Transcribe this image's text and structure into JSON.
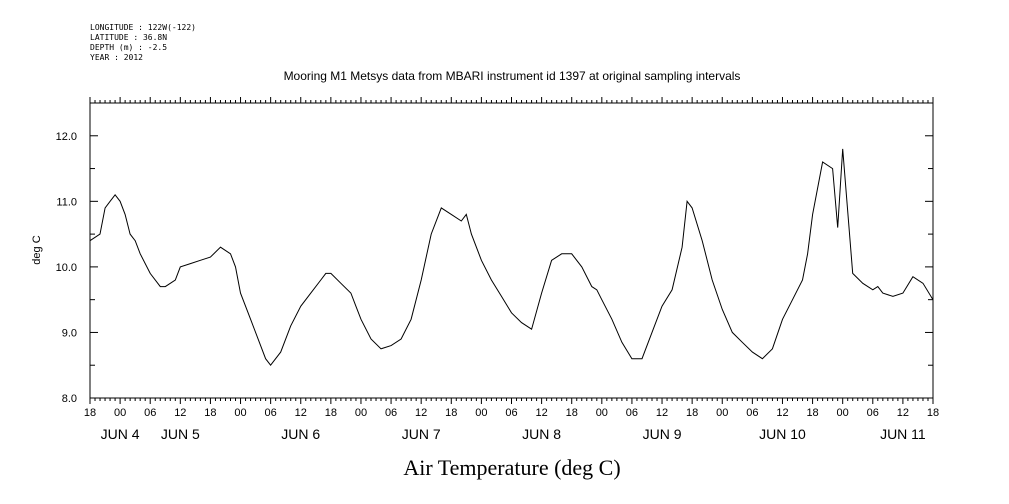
{
  "header": {
    "longitude": "LONGITUDE : 122W(-122)",
    "latitude": "LATITUDE : 36.8N",
    "depth": "DEPTH (m) : -2.5",
    "year": "YEAR : 2012"
  },
  "chart_data": {
    "type": "line",
    "title": "Mooring M1 Metsys data from MBARI instrument id 1397 at original sampling intervals",
    "xlabel": "Air Temperature (deg C)",
    "ylabel": "deg C",
    "ylim": [
      8.0,
      12.5
    ],
    "y_ticks": [
      "8.0",
      "9.0",
      "10.0",
      "11.0",
      "12.0"
    ],
    "x_range_hours": [
      0,
      168
    ],
    "x_hour_ticks": [
      "18",
      "00",
      "06",
      "12",
      "18",
      "00",
      "06",
      "12",
      "18",
      "00",
      "06",
      "12",
      "18",
      "00",
      "06",
      "12",
      "18",
      "00",
      "06",
      "12",
      "18",
      "00",
      "06",
      "12",
      "18",
      "00",
      "06",
      "12",
      "18"
    ],
    "x_day_labels": [
      {
        "label": "JUN  4",
        "hour": 6
      },
      {
        "label": "JUN  5",
        "hour": 18
      },
      {
        "label": "JUN  6",
        "hour": 42
      },
      {
        "label": "JUN  7",
        "hour": 66
      },
      {
        "label": "JUN  8",
        "hour": 90
      },
      {
        "label": "JUN  9",
        "hour": 114
      },
      {
        "label": "JUN 10",
        "hour": 138
      },
      {
        "label": "JUN 11",
        "hour": 162
      }
    ],
    "grid": false,
    "series": [
      {
        "x": [
          0,
          2,
          3,
          4,
          5,
          6,
          7,
          8,
          9,
          10,
          12,
          14,
          15,
          17,
          18,
          20,
          22,
          24,
          26,
          28,
          29,
          30,
          32,
          34,
          35,
          36,
          38,
          40,
          42,
          44,
          46,
          47,
          48,
          50,
          52,
          53,
          54,
          56,
          58,
          60,
          62,
          64,
          66,
          68,
          70,
          72,
          74,
          75,
          76,
          78,
          80,
          82,
          84,
          86,
          88,
          90,
          92,
          94,
          96,
          98,
          100,
          101,
          102,
          104,
          106,
          108,
          110,
          112,
          114,
          116,
          118,
          119,
          120,
          122,
          124,
          126,
          128,
          130,
          132,
          134,
          136,
          138,
          140,
          142,
          143,
          144,
          146,
          148,
          149,
          150,
          152,
          154,
          156,
          157,
          158,
          160,
          162,
          164,
          166,
          168
        ],
        "y": [
          10.4,
          10.5,
          10.9,
          11.0,
          11.1,
          11.0,
          10.8,
          10.5,
          10.4,
          10.2,
          9.9,
          9.7,
          9.7,
          9.8,
          10.0,
          10.05,
          10.1,
          10.15,
          10.3,
          10.2,
          10.0,
          9.6,
          9.2,
          8.8,
          8.6,
          8.5,
          8.7,
          9.1,
          9.4,
          9.6,
          9.8,
          9.9,
          9.9,
          9.75,
          9.6,
          9.4,
          9.2,
          8.9,
          8.75,
          8.8,
          8.9,
          9.2,
          9.8,
          10.5,
          10.9,
          10.8,
          10.7,
          10.8,
          10.5,
          10.1,
          9.8,
          9.55,
          9.3,
          9.15,
          9.05,
          9.6,
          10.1,
          10.2,
          10.2,
          10.0,
          9.7,
          9.65,
          9.5,
          9.2,
          8.85,
          8.6,
          8.6,
          9.0,
          9.4,
          9.65,
          10.3,
          11.0,
          10.9,
          10.4,
          9.8,
          9.35,
          9.0,
          8.85,
          8.7,
          8.6,
          8.75,
          9.2,
          9.5,
          9.8,
          10.2,
          10.8,
          11.6,
          11.5,
          10.6,
          11.8,
          9.9,
          9.75,
          9.65,
          9.7,
          9.6,
          9.55,
          9.6,
          9.85,
          9.75,
          9.5
        ]
      }
    ]
  }
}
